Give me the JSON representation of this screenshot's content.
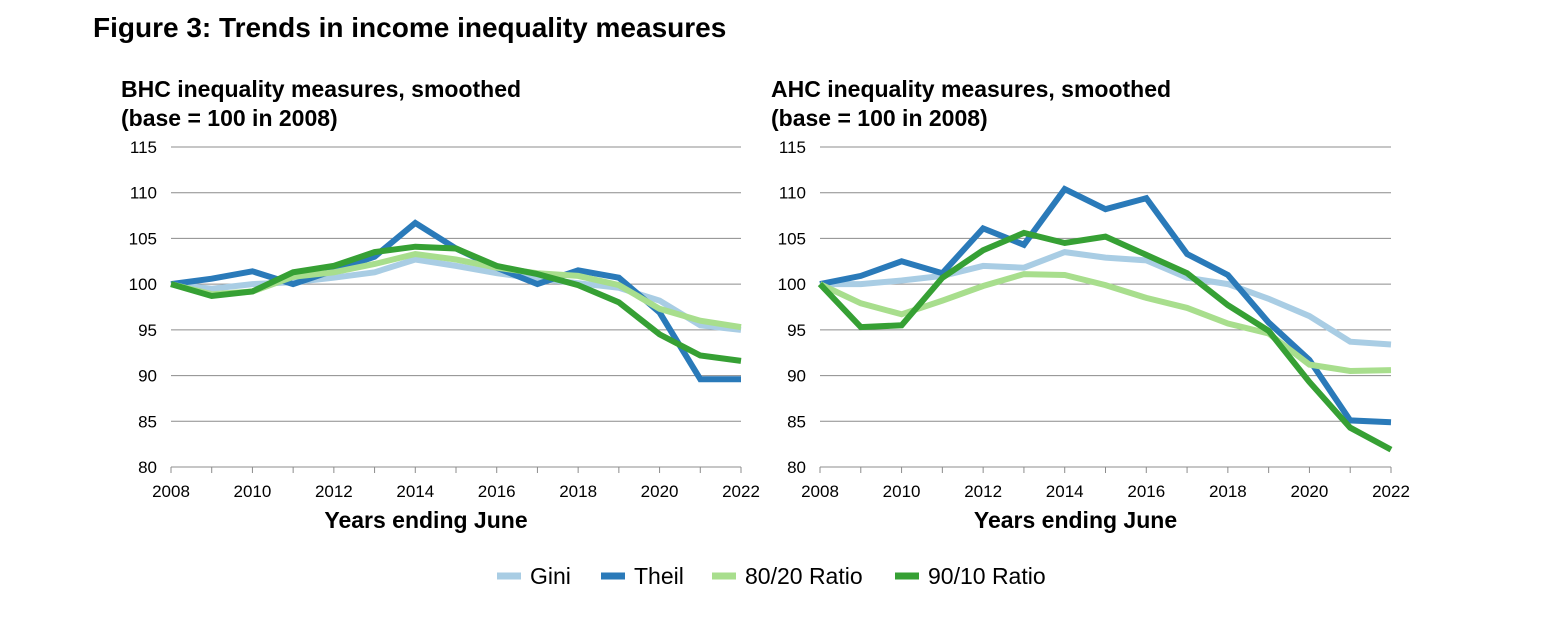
{
  "figure_title": "Figure 3: Trends in income inequality measures",
  "legend": [
    {
      "name": "Gini",
      "color": "#a9cde4"
    },
    {
      "name": "Theil",
      "color": "#2a7ab9"
    },
    {
      "name": "80/20 Ratio",
      "color": "#a8de8d"
    },
    {
      "name": "90/10 Ratio",
      "color": "#36a034"
    }
  ],
  "chart_data": [
    {
      "type": "line",
      "title": [
        "BHC inequality measures, smoothed",
        "(base = 100 in 2008)"
      ],
      "xlabel": "Years ending June",
      "ylabel": "",
      "ylim": [
        80,
        115
      ],
      "yticks": [
        80,
        85,
        90,
        95,
        100,
        105,
        110,
        115
      ],
      "xticks": [
        2008,
        2010,
        2012,
        2014,
        2016,
        2018,
        2020,
        2022
      ],
      "grid": "horizontal",
      "x": [
        2008,
        2009,
        2010,
        2011,
        2012,
        2013,
        2014,
        2015,
        2016,
        2017,
        2018,
        2019,
        2020,
        2021,
        2022
      ],
      "series": [
        {
          "name": "Gini",
          "color": "#a9cde4",
          "values": [
            100,
            99.5,
            100,
            100.2,
            100.7,
            101.3,
            102.7,
            102.0,
            101.2,
            100.6,
            100.1,
            99.6,
            98.2,
            95.5,
            95.0
          ]
        },
        {
          "name": "Theil",
          "color": "#2a7ab9",
          "values": [
            100,
            100.6,
            101.4,
            100.0,
            101.5,
            103.0,
            106.7,
            103.9,
            101.8,
            100.0,
            101.5,
            100.7,
            96.9,
            89.6,
            89.6
          ]
        },
        {
          "name": "80/20 Ratio",
          "color": "#a8de8d",
          "values": [
            100,
            98.9,
            99.2,
            100.8,
            101.3,
            102.2,
            103.3,
            102.7,
            101.8,
            101.2,
            100.9,
            99.9,
            97.3,
            96.0,
            95.3
          ]
        },
        {
          "name": "90/10 Ratio",
          "color": "#36a034",
          "values": [
            100,
            98.7,
            99.2,
            101.3,
            102.0,
            103.5,
            104.1,
            103.9,
            102.0,
            101.1,
            99.9,
            98.0,
            94.5,
            92.2,
            91.6
          ]
        }
      ]
    },
    {
      "type": "line",
      "title": [
        "AHC inequality measures, smoothed",
        "(base = 100 in 2008)"
      ],
      "xlabel": "Years ending June",
      "ylabel": "",
      "ylim": [
        80,
        115
      ],
      "yticks": [
        80,
        85,
        90,
        95,
        100,
        105,
        110,
        115
      ],
      "xticks": [
        2008,
        2010,
        2012,
        2014,
        2016,
        2018,
        2020,
        2022
      ],
      "grid": "horizontal",
      "x": [
        2008,
        2009,
        2010,
        2011,
        2012,
        2013,
        2014,
        2015,
        2016,
        2017,
        2018,
        2019,
        2020,
        2021,
        2022
      ],
      "series": [
        {
          "name": "Gini",
          "color": "#a9cde4",
          "values": [
            100,
            100.0,
            100.4,
            100.9,
            102.0,
            101.8,
            103.5,
            102.9,
            102.6,
            100.7,
            100.0,
            98.4,
            96.5,
            93.7,
            93.4
          ]
        },
        {
          "name": "Theil",
          "color": "#2a7ab9",
          "values": [
            100,
            100.9,
            102.5,
            101.2,
            106.1,
            104.3,
            110.4,
            108.2,
            109.4,
            103.3,
            101.0,
            95.8,
            91.7,
            85.1,
            84.9
          ]
        },
        {
          "name": "80/20 Ratio",
          "color": "#a8de8d",
          "values": [
            100,
            97.9,
            96.7,
            98.2,
            99.8,
            101.1,
            101.0,
            99.9,
            98.5,
            97.4,
            95.7,
            94.6,
            91.2,
            90.5,
            90.6
          ]
        },
        {
          "name": "90/10 Ratio",
          "color": "#36a034",
          "values": [
            100,
            95.3,
            95.5,
            100.7,
            103.7,
            105.6,
            104.5,
            105.2,
            103.2,
            101.2,
            97.7,
            94.9,
            89.3,
            84.3,
            81.9
          ]
        }
      ]
    }
  ]
}
